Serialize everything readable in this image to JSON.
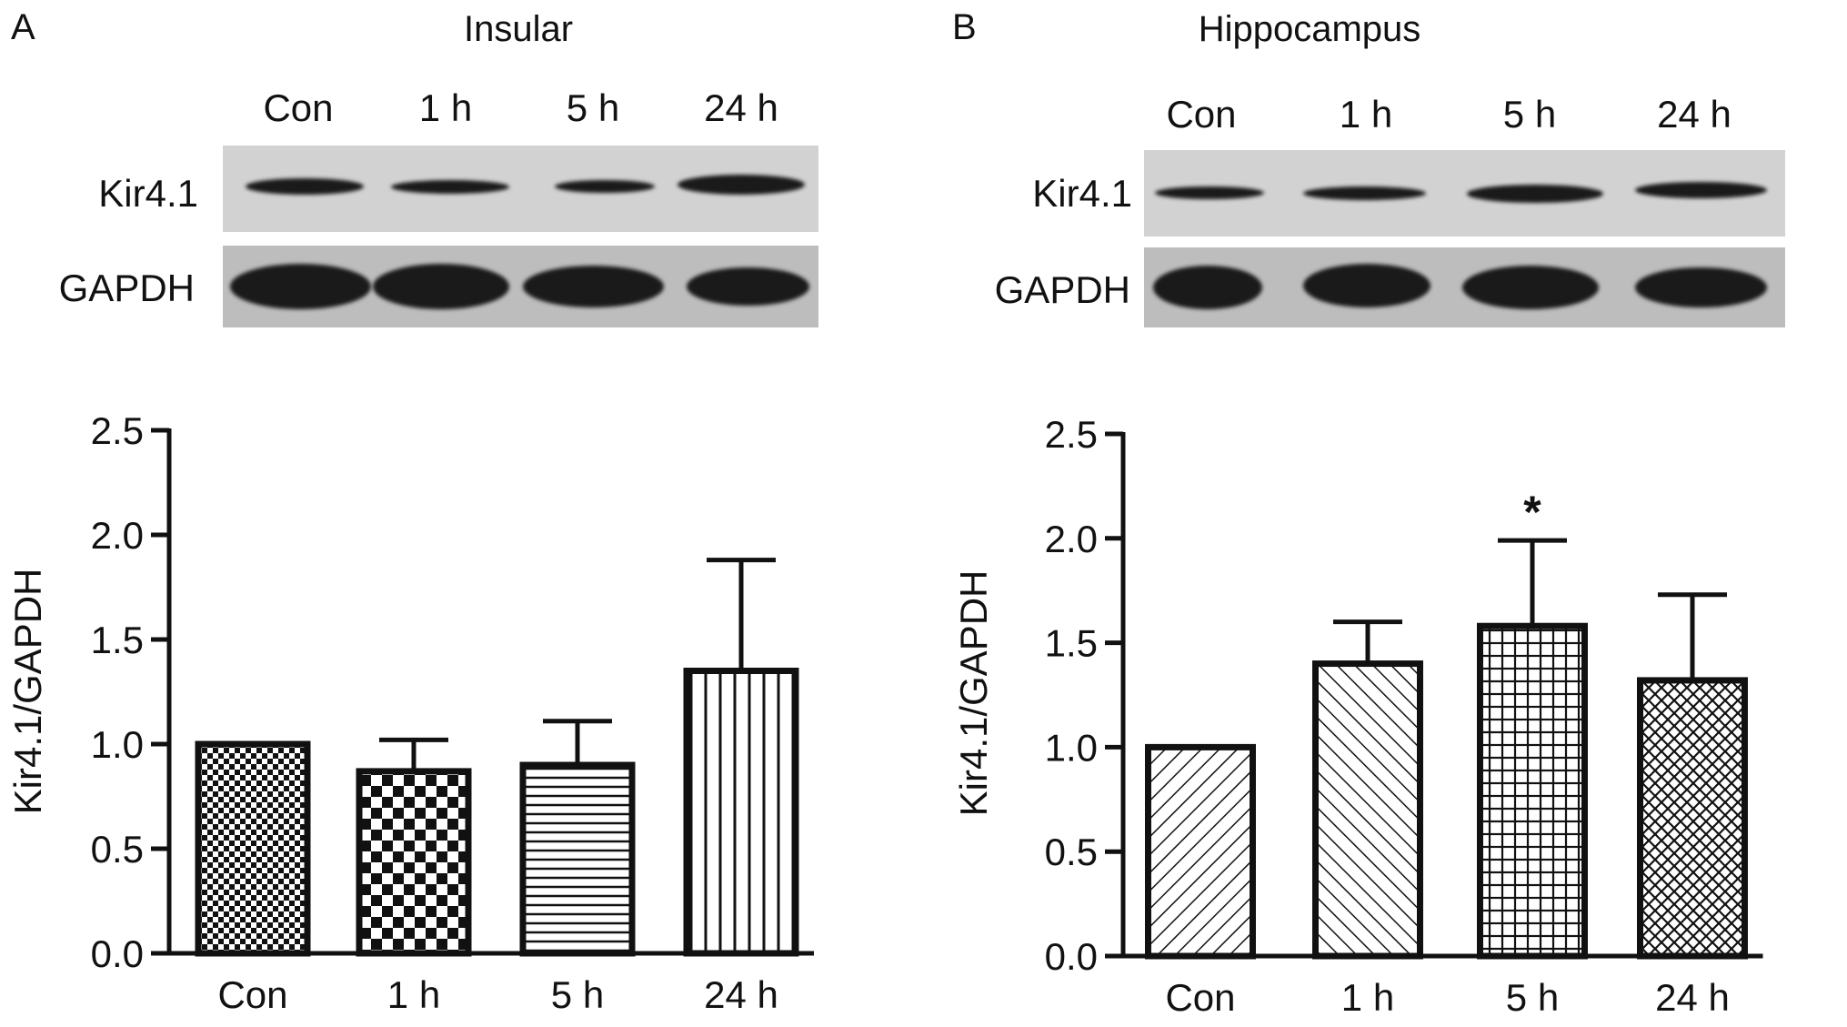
{
  "panels": [
    {
      "letter": "A",
      "blot": {
        "title": "Insular",
        "lanes": [
          "Con",
          "1 h",
          "5 h",
          "24 h"
        ],
        "proteins": [
          "Kir4.1",
          "GAPDH"
        ]
      }
    },
    {
      "letter": "B",
      "blot": {
        "title": "Hippocampus",
        "lanes": [
          "Con",
          "1 h",
          "5 h",
          "24 h"
        ],
        "proteins": [
          "Kir4.1",
          "GAPDH"
        ]
      }
    }
  ],
  "chart_data": [
    {
      "type": "bar",
      "categories": [
        "Con",
        "1 h",
        "5 h",
        "24 h"
      ],
      "values": [
        1.0,
        0.87,
        0.9,
        1.35
      ],
      "errors": [
        0,
        0.15,
        0.21,
        0.53
      ],
      "patterns": [
        "fine-checker",
        "checker",
        "horizontal-lines",
        "vertical-lines"
      ],
      "annotations": [
        "",
        "",
        "",
        ""
      ],
      "xlabel": "",
      "ylabel": "Kir4.1/GAPDH",
      "ylim": [
        0,
        2.5
      ],
      "yticks": [
        "0.0",
        "0.5",
        "1.0",
        "1.5",
        "2.0",
        "2.5"
      ],
      "grid": false
    },
    {
      "type": "bar",
      "categories": [
        "Con",
        "1 h",
        "5 h",
        "24 h"
      ],
      "values": [
        1.0,
        1.4,
        1.58,
        1.32
      ],
      "errors": [
        0,
        0.2,
        0.41,
        0.41
      ],
      "patterns": [
        "diagonal-up",
        "diagonal-down",
        "grid",
        "crosshatch"
      ],
      "annotations": [
        "",
        "",
        "*",
        ""
      ],
      "xlabel": "",
      "ylabel": "Kir4.1/GAPDH",
      "ylim": [
        0,
        2.5
      ],
      "yticks": [
        "0.0",
        "0.5",
        "1.0",
        "1.5",
        "2.0",
        "2.5"
      ],
      "grid": false
    }
  ],
  "colors": {
    "ink": "#111111",
    "blot_background": "#d2d2d2",
    "band": "#1a1a1a"
  }
}
